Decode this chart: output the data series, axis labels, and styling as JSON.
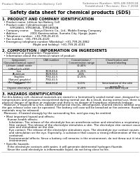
{
  "bg_color": "#ffffff",
  "header_left": "Product Name: Lithium Ion Battery Cell",
  "header_right_line1": "Substance Number: SDS-LIB-000518",
  "header_right_line2": "Established / Revision: Dec.7.2018",
  "title": "Safety data sheet for chemical products (SDS)",
  "section1_title": "1. PRODUCT AND COMPANY IDENTIFICATION",
  "section1_lines": [
    "  • Product name: Lithium Ion Battery Cell",
    "  • Product code: Cylindrical-type cell",
    "         SYR18650, SYR18650L, SYR18650A",
    "  • Company name:      Sanyo Electric Co., Ltd., Mobile Energy Company",
    "  • Address:              2001 Kamimunakan, Sumoto-City, Hyogo, Japan",
    "  • Telephone number:  +81-799-26-4111",
    "  • Fax number:  +81-799-26-4120",
    "  • Emergency telephone number (Weekday): +81-799-26-3862",
    "                                   (Night and holiday): +81-799-26-4101"
  ],
  "section2_title": "2. COMPOSITION / INFORMATION ON INGREDIENTS",
  "section2_intro": "  • Substance or preparation: Preparation",
  "section2_sub": "  • Information about the chemical nature of product:",
  "table_col_headers": [
    "Component\n(General/chemical name)",
    "CAS number",
    "Concentration /\nConcentration range",
    "Classification and\nhazard labeling"
  ],
  "table_rows": [
    [
      "Lithium cobalt oxide\n(LiMnxCo(1-x)O2)",
      "-",
      "30-40%",
      "-"
    ],
    [
      "Iron",
      "7439-89-6",
      "15-25%",
      "-"
    ],
    [
      "Aluminum",
      "7429-90-5",
      "2-6%",
      "-"
    ],
    [
      "Graphite\n(Natural graphite)\n(Artificial graphite)",
      "7782-42-5\n7782-42-5",
      "10-25%",
      "-"
    ],
    [
      "Copper",
      "7440-50-8",
      "5-15%",
      "Sensitization of the skin\ngroup No.2"
    ],
    [
      "Organic electrolyte",
      "-",
      "10-20%",
      "Inflammable liquid"
    ]
  ],
  "section3_title": "3. HAZARDS IDENTIFICATION",
  "section3_lines": [
    "For this battery cell, chemical materials are stored in a hermetically sealed metal case, designed to withstand",
    "temperatures and pressures encountered during normal use. As a result, during normal use, there is no",
    "physical danger of ignition or explosion and there is no danger of hazardous materials leakage.",
    "  However, if exposed to a fire, added mechanical shocks, decomposed, shorted electric without any measures,",
    "the gas release valve can be operated. The battery cell case will be breached or fire-extreme. Hazardous",
    "materials may be released.",
    "  Moreover, if heated strongly by the surrounding fire, acid gas may be emitted."
  ],
  "section3_bullet1": "  • Most important hazard and effects:",
  "section3_human": "      Human health effects:",
  "section3_human_lines": [
    "        Inhalation: The release of the electrolyte has an anesthesia action and stimulates a respiratory tract.",
    "        Skin contact: The release of the electrolyte stimulates a skin. The electrolyte skin contact causes a",
    "        sore and stimulation on the skin.",
    "        Eye contact: The release of the electrolyte stimulates eyes. The electrolyte eye contact causes a sore",
    "        and stimulation on the eye. Especially, a substance that causes a strong inflammation of the eye is",
    "        contained.",
    "        Environmental effects: Since a battery cell remains in the environment, do not throw out it into the",
    "        environment."
  ],
  "section3_specific": "  • Specific hazards:",
  "section3_specific_lines": [
    "      If the electrolyte contacts with water, it will generate detrimental hydrogen fluoride.",
    "      Since the used electrolyte is inflammable liquid, do not bring close to fire."
  ],
  "footer_line": true
}
